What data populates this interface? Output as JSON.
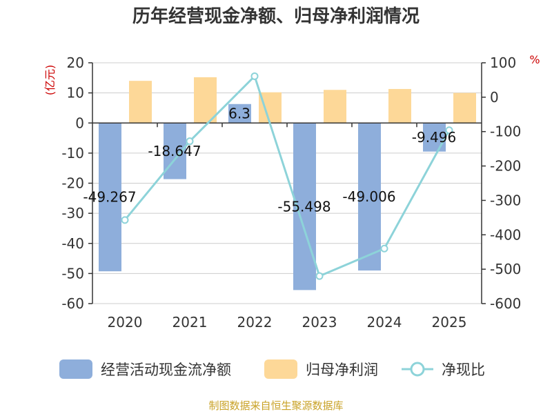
{
  "title": "历年经营现金净额、归母净利润情况",
  "source": "制图数据来自恒生聚源数据库",
  "colors": {
    "cash_flow": "#8eaedb",
    "net_profit": "#fdd898",
    "ratio": "#8dd3d9",
    "axis": "#333333",
    "grid": "#cccccc",
    "unit": "#cc0000",
    "source": "#c9a227"
  },
  "chart_data": {
    "type": "bar",
    "categories": [
      "2020",
      "2021",
      "2022",
      "2023",
      "2024",
      "2025"
    ],
    "left_axis": {
      "unit_label": "(亿元)",
      "ylim": [
        -60,
        20
      ],
      "ticks": [
        20,
        10,
        0,
        -10,
        -20,
        -30,
        -40,
        -50,
        -60
      ],
      "tick_labels": [
        "20",
        "10",
        "0",
        "-10",
        "-20",
        "-30",
        "-40",
        "-50",
        "-60"
      ]
    },
    "right_axis": {
      "unit_label": "%",
      "ylim": [
        -600,
        100
      ],
      "ticks": [
        100,
        0,
        -100,
        -200,
        -300,
        -400,
        -500,
        -600
      ],
      "tick_labels": [
        "100",
        "0",
        "-100",
        "-200",
        "-300",
        "-400",
        "-500",
        "-600"
      ]
    },
    "series": [
      {
        "name": "经营活动现金流净额",
        "type": "bar",
        "axis": "left",
        "values": [
          -49.267,
          -18.647,
          6.3,
          -55.498,
          -49.006,
          -9.496
        ],
        "data_labels": [
          "-49.267",
          "-18.647",
          "6.3",
          "-55.498",
          "-49.006",
          "-9.496"
        ]
      },
      {
        "name": "归母净利润",
        "type": "bar",
        "axis": "left",
        "values": [
          14,
          15.2,
          10.2,
          11,
          11.3,
          10
        ]
      },
      {
        "name": "净现比",
        "type": "line",
        "axis": "right",
        "values": [
          -357,
          -128,
          61,
          -520,
          -440,
          -96
        ]
      }
    ],
    "grid": true,
    "legend_position": "bottom"
  }
}
